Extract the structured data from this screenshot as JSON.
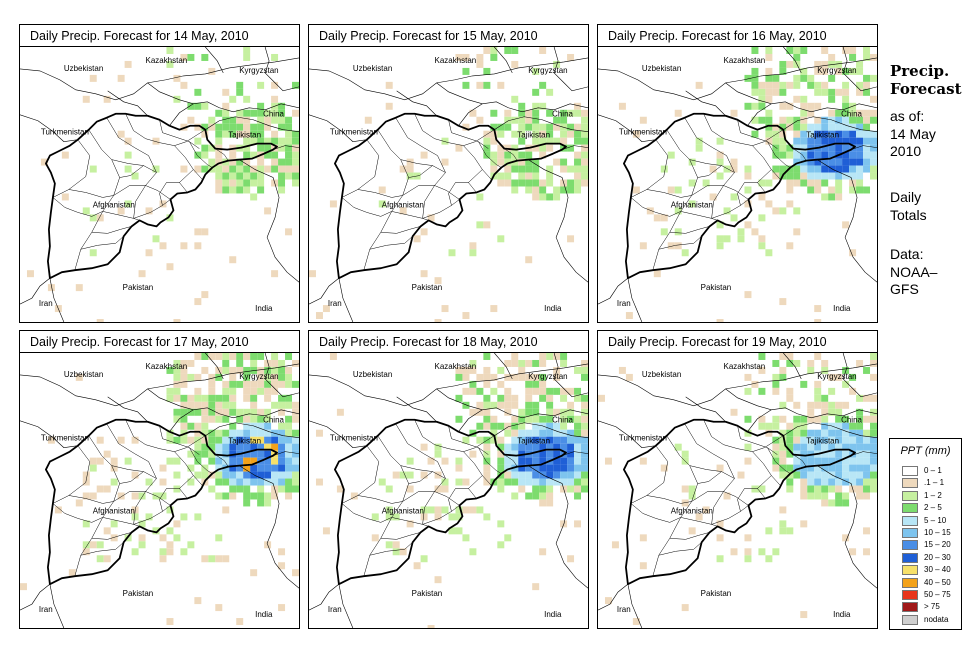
{
  "panels": [
    {
      "title": "Daily Precip. Forecast for  14 May, 2010",
      "intensity": 1
    },
    {
      "title": "Daily Precip. Forecast for  15 May, 2010",
      "intensity": 1
    },
    {
      "title": "Daily Precip. Forecast for  16 May, 2010",
      "intensity": 3
    },
    {
      "title": "Daily Precip. Forecast for  17 May, 2010",
      "intensity": 4
    },
    {
      "title": "Daily Precip. Forecast for  18 May, 2010",
      "intensity": 3
    },
    {
      "title": "Daily Precip. Forecast for  19 May, 2010",
      "intensity": 2
    }
  ],
  "countries": {
    "uzbekistan": "Uzbekistan",
    "kazakhstan": "Kazakhstan",
    "kyrgyzstan": "Kyrgyzstan",
    "china": "China",
    "tajikistan": "Tajikistan",
    "turkmenistan": "Turkmenistan",
    "afghanistan": "Afghanistan",
    "pakistan": "Pakistan",
    "iran": "Iran",
    "india": "India"
  },
  "sidebar": {
    "title_line1": "Precip.",
    "title_line2": "Forecast",
    "asof": "as of:",
    "date_line1": "14 May",
    "date_line2": "2010",
    "daily_line1": "Daily",
    "daily_line2": "Totals",
    "data_line1": "Data:",
    "data_line2": "NOAA–",
    "data_line3": "GFS"
  },
  "legend": {
    "title": "PPT (mm)",
    "items": [
      {
        "label": "0 – 1",
        "color": "#ffffff"
      },
      {
        "label": ".1 – 1",
        "color": "#eed9bd"
      },
      {
        "label": "1 – 2",
        "color": "#c6f0a0"
      },
      {
        "label": "2 – 5",
        "color": "#7ddc6e"
      },
      {
        "label": "5 – 10",
        "color": "#b8e6f6"
      },
      {
        "label": "10 – 15",
        "color": "#7ec4ee"
      },
      {
        "label": "15 – 20",
        "color": "#4a8ee6"
      },
      {
        "label": "20 – 30",
        "color": "#1f5fd6"
      },
      {
        "label": "30 – 40",
        "color": "#f6e06a"
      },
      {
        "label": "40 – 50",
        "color": "#f3a21a"
      },
      {
        "label": "50 – 75",
        "color": "#e8351c"
      },
      {
        "label": "> 75",
        "color": "#a01818"
      },
      {
        "label": "nodata",
        "color": "#cfcfcf"
      }
    ]
  }
}
